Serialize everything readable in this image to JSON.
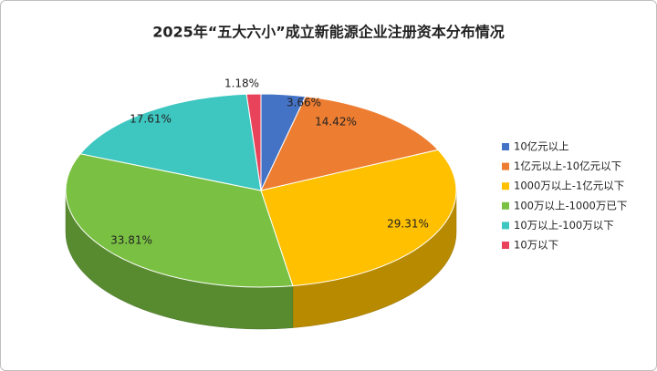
{
  "chart_data": {
    "type": "pie3d",
    "title": "2025年“五大六小”成立新能源企业注册资本分布情况",
    "categories": [
      "10亿元以上",
      "1亿元以上-10亿元以下",
      "1000万以上-1亿元以下",
      "100万以上-1000万已下",
      "10万以上-100万以下",
      "10万以下"
    ],
    "values": [
      3.66,
      14.42,
      29.31,
      33.81,
      17.61,
      1.18
    ],
    "value_labels": [
      "3.66%",
      "14.42%",
      "29.31%",
      "33.81%",
      "17.61%",
      "1.18%"
    ],
    "colors": [
      "#4472c4",
      "#ed7d31",
      "#ffc000",
      "#7ac143",
      "#3ec6c0",
      "#e8435a"
    ],
    "legend": "right"
  }
}
